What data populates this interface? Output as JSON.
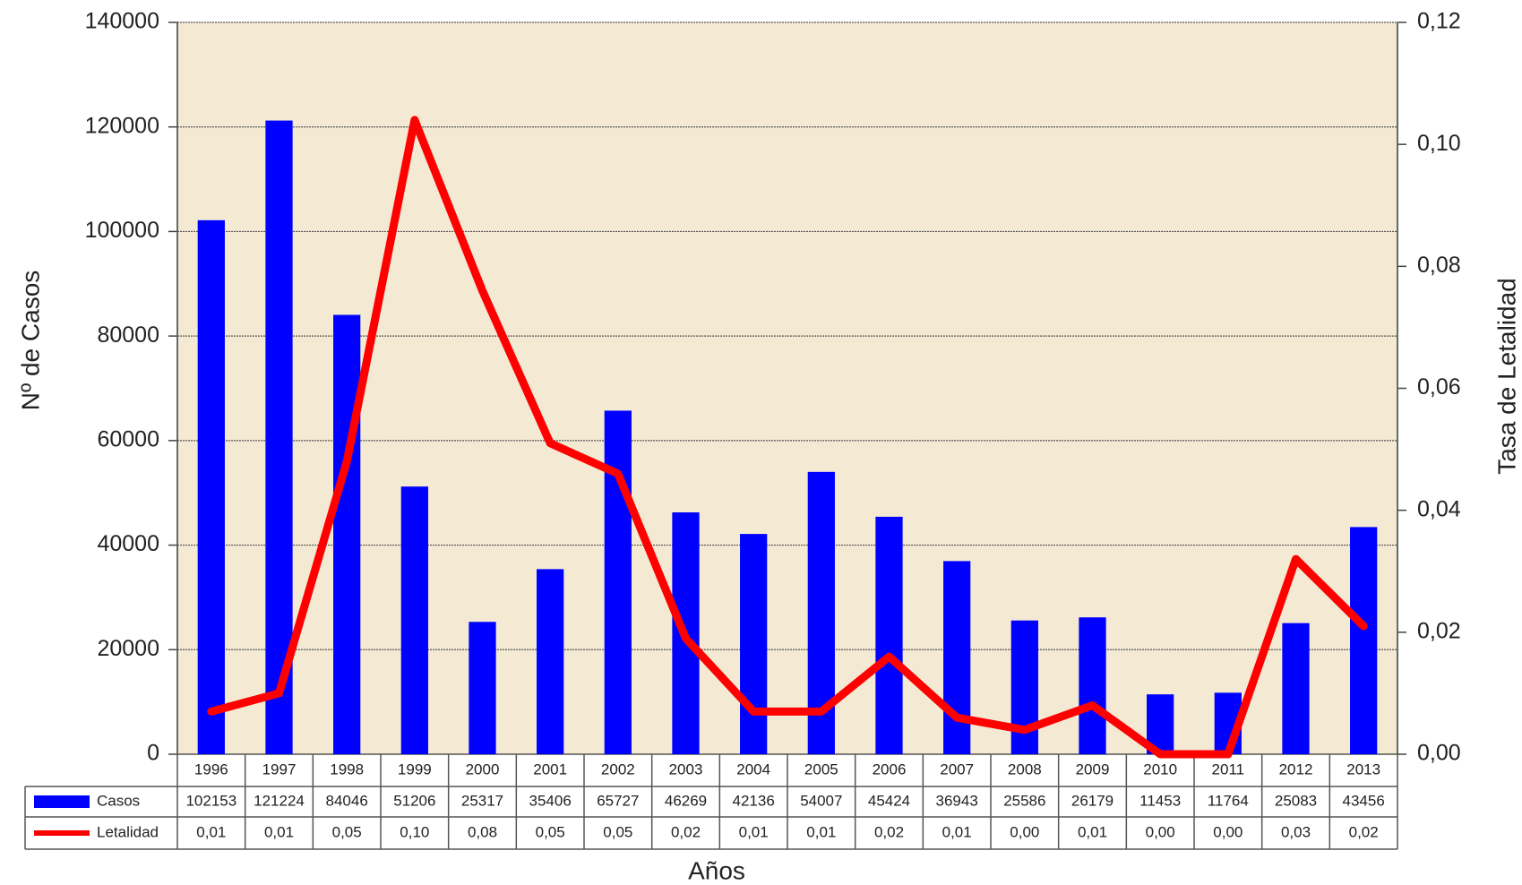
{
  "chart_data": {
    "type": "bar",
    "x_label": "Años",
    "y_label": "Nº de Casos",
    "y2_label": "Tasa de Letalidad",
    "categories": [
      "1996",
      "1997",
      "1998",
      "1999",
      "2000",
      "2001",
      "2002",
      "2003",
      "2004",
      "2005",
      "2006",
      "2007",
      "2008",
      "2009",
      "2010",
      "2011",
      "2012",
      "2013"
    ],
    "series": [
      {
        "name": "Casos",
        "type": "bar",
        "color": "#0000ff",
        "values": [
          102153,
          121224,
          84046,
          51206,
          25317,
          35406,
          65727,
          46269,
          42136,
          54007,
          45424,
          36943,
          25586,
          26179,
          11453,
          11764,
          25083,
          43456
        ]
      },
      {
        "name": "Letalidad",
        "type": "line",
        "axis": "y2",
        "color": "#ff0000",
        "values": [
          0.007,
          0.01,
          0.048,
          0.104,
          0.076,
          0.051,
          0.046,
          0.019,
          0.007,
          0.007,
          0.016,
          0.006,
          0.004,
          0.008,
          0.0,
          0.0,
          0.032,
          0.021
        ],
        "value_labels": [
          "0,01",
          "0,01",
          "0,05",
          "0,10",
          "0,08",
          "0,05",
          "0,05",
          "0,02",
          "0,01",
          "0,01",
          "0,02",
          "0,01",
          "0,00",
          "0,01",
          "0,00",
          "0,00",
          "0,03",
          "0,02"
        ]
      }
    ],
    "ylim": [
      0,
      140000
    ],
    "yticks": [
      0,
      20000,
      40000,
      60000,
      80000,
      100000,
      120000,
      140000
    ],
    "y2lim": [
      0,
      0.12
    ],
    "y2ticks": [
      {
        "value": 0,
        "label": "0,00"
      },
      {
        "value": 0.02,
        "label": "0,02"
      },
      {
        "value": 0.04,
        "label": "0,04"
      },
      {
        "value": 0.06,
        "label": "0,06"
      },
      {
        "value": 0.08,
        "label": "0,08"
      },
      {
        "value": 0.1,
        "label": "0,10"
      },
      {
        "value": 0.12,
        "label": "0,12"
      }
    ],
    "grid": true,
    "plot_background": "#f4ead3"
  }
}
